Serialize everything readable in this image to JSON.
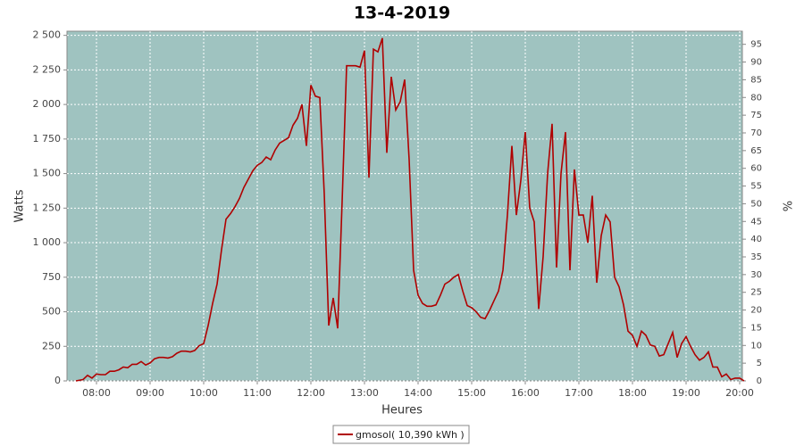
{
  "chart_data": {
    "type": "line",
    "title": "13-4-2019",
    "x_label": "Heures",
    "y_label": "Watts",
    "y2_label": "%",
    "x": [
      "07:37",
      "07:45",
      "07:50",
      "07:55",
      "08:00",
      "08:05",
      "08:10",
      "08:15",
      "08:20",
      "08:25",
      "08:30",
      "08:35",
      "08:40",
      "08:45",
      "08:50",
      "08:55",
      "09:00",
      "09:05",
      "09:10",
      "09:15",
      "09:20",
      "09:25",
      "09:30",
      "09:35",
      "09:40",
      "09:45",
      "09:50",
      "09:55",
      "10:00",
      "10:05",
      "10:10",
      "10:15",
      "10:20",
      "10:25",
      "10:30",
      "10:35",
      "10:40",
      "10:45",
      "10:50",
      "10:55",
      "11:00",
      "11:05",
      "11:10",
      "11:15",
      "11:20",
      "11:25",
      "11:30",
      "11:35",
      "11:40",
      "11:45",
      "11:50",
      "11:55",
      "12:00",
      "12:05",
      "12:10",
      "12:15",
      "12:20",
      "12:25",
      "12:30",
      "12:35",
      "12:40",
      "12:45",
      "12:50",
      "12:55",
      "13:00",
      "13:05",
      "13:10",
      "13:15",
      "13:20",
      "13:25",
      "13:30",
      "13:35",
      "13:40",
      "13:45",
      "13:50",
      "13:55",
      "14:00",
      "14:05",
      "14:10",
      "14:15",
      "14:20",
      "14:25",
      "14:30",
      "14:35",
      "14:40",
      "14:45",
      "14:50",
      "14:55",
      "15:00",
      "15:05",
      "15:10",
      "15:15",
      "15:20",
      "15:25",
      "15:30",
      "15:35",
      "15:40",
      "15:45",
      "15:50",
      "15:55",
      "16:00",
      "16:05",
      "16:10",
      "16:15",
      "16:20",
      "16:25",
      "16:30",
      "16:35",
      "16:40",
      "16:45",
      "16:50",
      "16:55",
      "17:00",
      "17:05",
      "17:10",
      "17:15",
      "17:20",
      "17:25",
      "17:30",
      "17:35",
      "17:40",
      "17:45",
      "17:50",
      "17:55",
      "18:00",
      "18:05",
      "18:10",
      "18:15",
      "18:20",
      "18:25",
      "18:30",
      "18:35",
      "18:40",
      "18:45",
      "18:50",
      "18:55",
      "19:00",
      "19:05",
      "19:10",
      "19:15",
      "19:20",
      "19:25",
      "19:30",
      "19:35",
      "19:40",
      "19:45",
      "19:50",
      "19:55",
      "20:00",
      "20:05"
    ],
    "series": [
      {
        "name": "gmosol( 10,390 kWh )",
        "color": "#b00000",
        "values": [
          0,
          10,
          40,
          20,
          50,
          45,
          45,
          70,
          70,
          80,
          100,
          95,
          120,
          120,
          140,
          115,
          130,
          160,
          170,
          170,
          165,
          175,
          200,
          215,
          215,
          210,
          220,
          255,
          270,
          400,
          560,
          700,
          950,
          1170,
          1210,
          1260,
          1320,
          1400,
          1460,
          1520,
          1560,
          1580,
          1620,
          1600,
          1670,
          1720,
          1740,
          1760,
          1850,
          1900,
          2000,
          1700,
          2140,
          2060,
          2050,
          1350,
          400,
          600,
          380,
          1300,
          2280,
          2280,
          2280,
          2270,
          2390,
          1470,
          2400,
          2380,
          2480,
          1650,
          2200,
          1960,
          2020,
          2180,
          1600,
          800,
          620,
          560,
          540,
          540,
          550,
          620,
          700,
          720,
          750,
          770,
          650,
          545,
          530,
          500,
          460,
          450,
          510,
          580,
          650,
          800,
          1200,
          1700,
          1200,
          1450,
          1800,
          1250,
          1150,
          520,
          900,
          1500,
          1860,
          820,
          1500,
          1800,
          800,
          1530,
          1200,
          1200,
          1000,
          1340,
          710,
          1050,
          1200,
          1150,
          750,
          680,
          550,
          360,
          330,
          250,
          360,
          330,
          260,
          250,
          180,
          190,
          270,
          350,
          170,
          270,
          320,
          250,
          190,
          150,
          170,
          210,
          100,
          100,
          30,
          50,
          10,
          20,
          20,
          0
        ]
      }
    ],
    "xlim": [
      "07:27",
      "20:03"
    ],
    "xticks": [
      "08:00",
      "09:00",
      "10:00",
      "11:00",
      "12:00",
      "13:00",
      "14:00",
      "15:00",
      "16:00",
      "17:00",
      "18:00",
      "19:00",
      "20:00"
    ],
    "ylim": [
      0,
      2530
    ],
    "yticks": [
      0,
      250,
      500,
      750,
      {
        "value": 1000,
        "label": "1 000"
      },
      {
        "value": 1250,
        "label": "1 250"
      },
      {
        "value": 1500,
        "label": "1 500"
      },
      {
        "value": 1750,
        "label": "1 750"
      },
      {
        "value": 2000,
        "label": "2 000"
      },
      {
        "value": 2250,
        "label": "2 250"
      },
      {
        "value": 2500,
        "label": "2 500"
      }
    ],
    "y2lim": [
      0,
      98.7
    ],
    "y2ticks": [
      0,
      5,
      10,
      15,
      20,
      25,
      30,
      35,
      40,
      45,
      50,
      55,
      60,
      65,
      70,
      75,
      80,
      85,
      90,
      95
    ],
    "grid": true,
    "plot_background": "#9fc3c0",
    "legend": "bottom"
  }
}
